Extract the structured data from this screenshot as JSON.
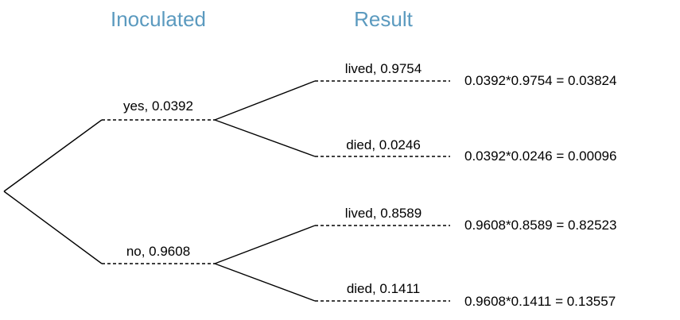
{
  "colors": {
    "header": "#5b9abf",
    "lines": "#000000"
  },
  "headers": {
    "inoculated": "Inoculated",
    "result": "Result"
  },
  "branches": {
    "yes": "yes,  0.0392",
    "no": "no,  0.9608",
    "yes_lived": "lived,  0.9754",
    "yes_died": "died,  0.0246",
    "no_lived": "lived,  0.8589",
    "no_died": "died,  0.1411"
  },
  "results": {
    "yes_lived": "0.0392*0.9754  =  0.03824",
    "yes_died": "0.0392*0.0246  =  0.00096",
    "no_lived": "0.9608*0.8589  =  0.82523",
    "no_died": "0.9608*0.1411  =  0.13557"
  }
}
